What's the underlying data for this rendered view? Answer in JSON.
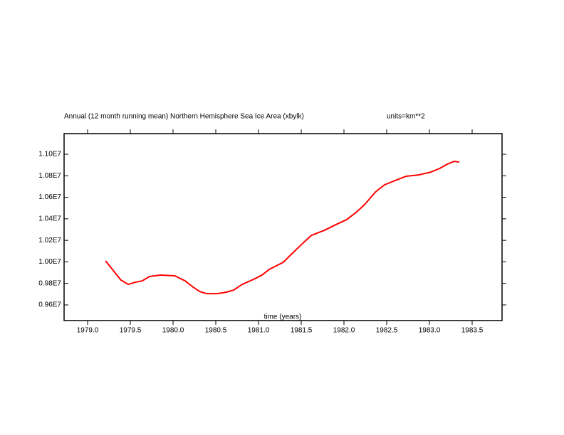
{
  "chart_data": {
    "type": "line",
    "title": "Annual (12 month running mean) Northern Hemisphere Sea Ice Area (xbylk)",
    "units": "units=km**2",
    "x_label": "time (years)",
    "x": [
      1979.21,
      1979.29,
      1979.39,
      1979.475,
      1979.56,
      1979.64,
      1979.725,
      1979.85,
      1980.02,
      1980.14,
      1980.225,
      1980.31,
      1980.39,
      1980.52,
      1980.625,
      1980.71,
      1980.81,
      1980.94,
      1981.04,
      1981.125,
      1981.29,
      1981.39,
      1981.52,
      1981.62,
      1981.77,
      1981.89,
      1982.03,
      1982.14,
      1982.24,
      1982.37,
      1982.475,
      1982.6,
      1982.725,
      1982.875,
      1983.02,
      1983.12,
      1983.21,
      1983.29,
      1983.35
    ],
    "series": [
      {
        "name": "sea ice area",
        "color": "#ff0000",
        "values": [
          10009000,
          9930000,
          9831000,
          9791000,
          9811000,
          9824000,
          9864000,
          9877000,
          9871000,
          9824000,
          9771000,
          9725000,
          9705000,
          9705000,
          9719000,
          9738000,
          9791000,
          9837000,
          9877000,
          9930000,
          9996000,
          10075000,
          10174000,
          10247000,
          10293000,
          10340000,
          10392000,
          10458000,
          10531000,
          10650000,
          10716000,
          10756000,
          10795000,
          10808000,
          10835000,
          10868000,
          10908000,
          10934000,
          10927000
        ]
      }
    ],
    "xlim": [
      1978.725,
      1983.85
    ],
    "ylim": [
      9454700,
      11191500
    ],
    "xticks": [
      {
        "value": 1979,
        "label": "1979.0"
      },
      1979.5,
      {
        "value": 1980,
        "label": "1980.0"
      },
      1980.5,
      {
        "value": 1981,
        "label": "1981.0"
      },
      1981.5,
      {
        "value": 1982,
        "label": "1982.0"
      },
      1982.5,
      {
        "value": 1983,
        "label": "1983.0"
      },
      1983.5
    ],
    "yticks": [
      {
        "value": 9600000,
        "label": "0.96E7"
      },
      {
        "value": 9800000,
        "label": "0.98E7"
      },
      {
        "value": 10000000,
        "label": "1.00E7"
      },
      {
        "value": 10200000,
        "label": "1.02E7"
      },
      {
        "value": 10400000,
        "label": "1.04E7"
      },
      {
        "value": 10600000,
        "label": "1.06E7"
      },
      {
        "value": 10800000,
        "label": "1.08E7"
      },
      {
        "value": 11000000,
        "label": "1.10E7"
      }
    ]
  }
}
